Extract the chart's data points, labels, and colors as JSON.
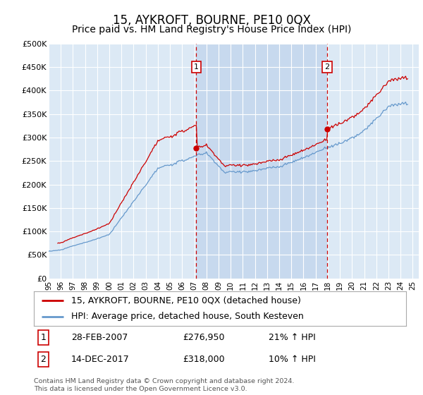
{
  "title": "15, AYKROFT, BOURNE, PE10 0QX",
  "subtitle": "Price paid vs. HM Land Registry's House Price Index (HPI)",
  "ylim": [
    0,
    500000
  ],
  "yticks": [
    0,
    50000,
    100000,
    150000,
    200000,
    250000,
    300000,
    350000,
    400000,
    450000,
    500000
  ],
  "ytick_labels": [
    "£0",
    "£50K",
    "£100K",
    "£150K",
    "£200K",
    "£250K",
    "£300K",
    "£350K",
    "£400K",
    "£450K",
    "£500K"
  ],
  "xlim_start": 1995.0,
  "xlim_end": 2025.5,
  "xtick_years": [
    1995,
    1996,
    1997,
    1998,
    1999,
    2000,
    2001,
    2002,
    2003,
    2004,
    2005,
    2006,
    2007,
    2008,
    2009,
    2010,
    2011,
    2012,
    2013,
    2014,
    2015,
    2016,
    2017,
    2018,
    2019,
    2020,
    2021,
    2022,
    2023,
    2024,
    2025
  ],
  "background_color": "#dce9f5",
  "fig_bg_color": "#ffffff",
  "grid_color": "#ffffff",
  "red_line_color": "#cc0000",
  "blue_line_color": "#6699cc",
  "fill_color": "#c5d8ee",
  "vline_color": "#cc0000",
  "marker1_x": 2007.167,
  "marker1_y": 276950,
  "marker2_x": 2017.958,
  "marker2_y": 318000,
  "sale1_x": 1995.75,
  "sale1_y": 75000,
  "legend_line1": "15, AYKROFT, BOURNE, PE10 0QX (detached house)",
  "legend_line2": "HPI: Average price, detached house, South Kesteven",
  "marker1_date": "28-FEB-2007",
  "marker1_price": "£276,950",
  "marker1_hpi": "21% ↑ HPI",
  "marker2_date": "14-DEC-2017",
  "marker2_price": "£318,000",
  "marker2_hpi": "10% ↑ HPI",
  "footer": "Contains HM Land Registry data © Crown copyright and database right 2024.\nThis data is licensed under the Open Government Licence v3.0.",
  "title_fontsize": 12,
  "subtitle_fontsize": 10,
  "tick_fontsize": 8,
  "legend_fontsize": 9,
  "table_fontsize": 9
}
